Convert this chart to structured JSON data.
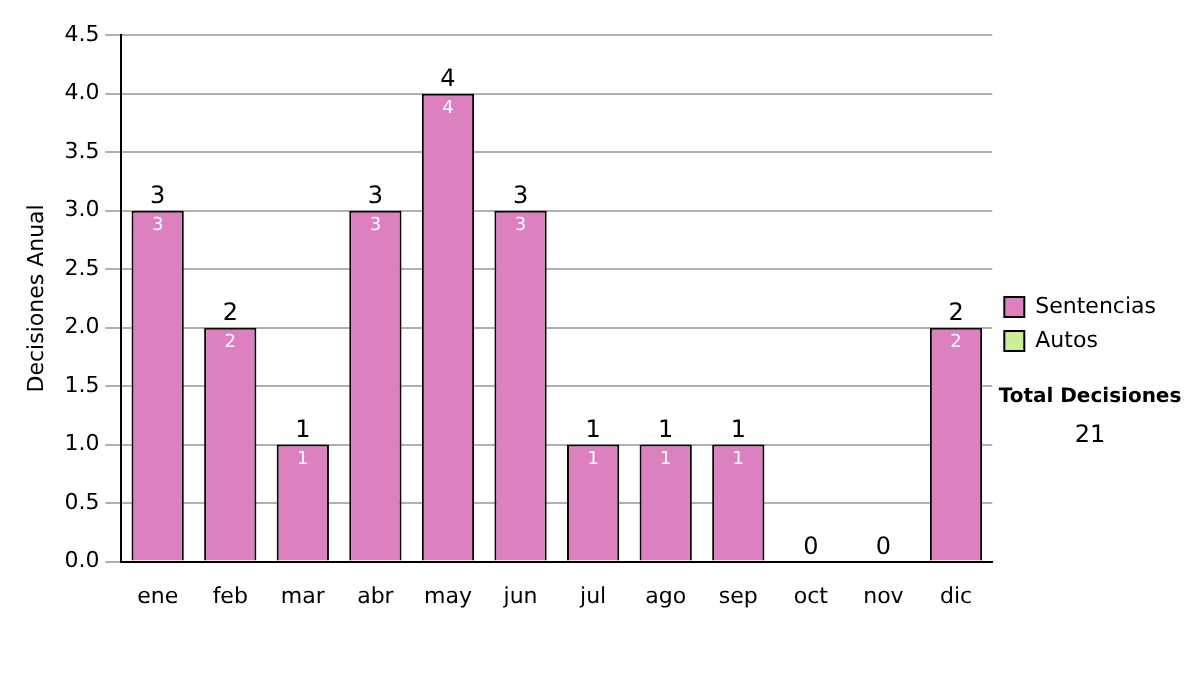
{
  "chart_data": {
    "type": "bar",
    "ylabel": "Decisiones Anual",
    "categories": [
      "ene",
      "feb",
      "mar",
      "abr",
      "may",
      "jun",
      "jul",
      "ago",
      "sep",
      "oct",
      "nov",
      "dic"
    ],
    "series": [
      {
        "name": "Sentencias",
        "color": "#dd80c0",
        "values": [
          3,
          2,
          1,
          3,
          4,
          3,
          1,
          1,
          1,
          0,
          0,
          2
        ],
        "value_labels": [
          "3",
          "2",
          "1",
          "3",
          "4",
          "3",
          "1",
          "1",
          "1",
          null,
          null,
          "2"
        ]
      },
      {
        "name": "Autos",
        "color": "#ccee99",
        "values": [
          0,
          0,
          0,
          0,
          0,
          0,
          0,
          0,
          0,
          0,
          0,
          0
        ]
      }
    ],
    "stacked": true,
    "totals": [
      "3",
      "2",
      "1",
      "3",
      "4",
      "3",
      "1",
      "1",
      "1",
      "0",
      "0",
      "2"
    ],
    "ylim": [
      0,
      4.5
    ],
    "yticks": [
      {
        "value": 0,
        "label": "0.0"
      },
      {
        "value": 0.5,
        "label": "0.5"
      },
      {
        "value": 1,
        "label": "1.0"
      },
      {
        "value": 1.5,
        "label": "1.5"
      },
      {
        "value": 2,
        "label": "2.0"
      },
      {
        "value": 2.5,
        "label": "2.5"
      },
      {
        "value": 3,
        "label": "3.0"
      },
      {
        "value": 3.5,
        "label": "3.5"
      },
      {
        "value": 4,
        "label": "4.0"
      },
      {
        "value": 4.5,
        "label": "4.5"
      }
    ],
    "grid": "y",
    "legend": "right",
    "annotations": [
      "Total Decisiones",
      "21"
    ]
  }
}
